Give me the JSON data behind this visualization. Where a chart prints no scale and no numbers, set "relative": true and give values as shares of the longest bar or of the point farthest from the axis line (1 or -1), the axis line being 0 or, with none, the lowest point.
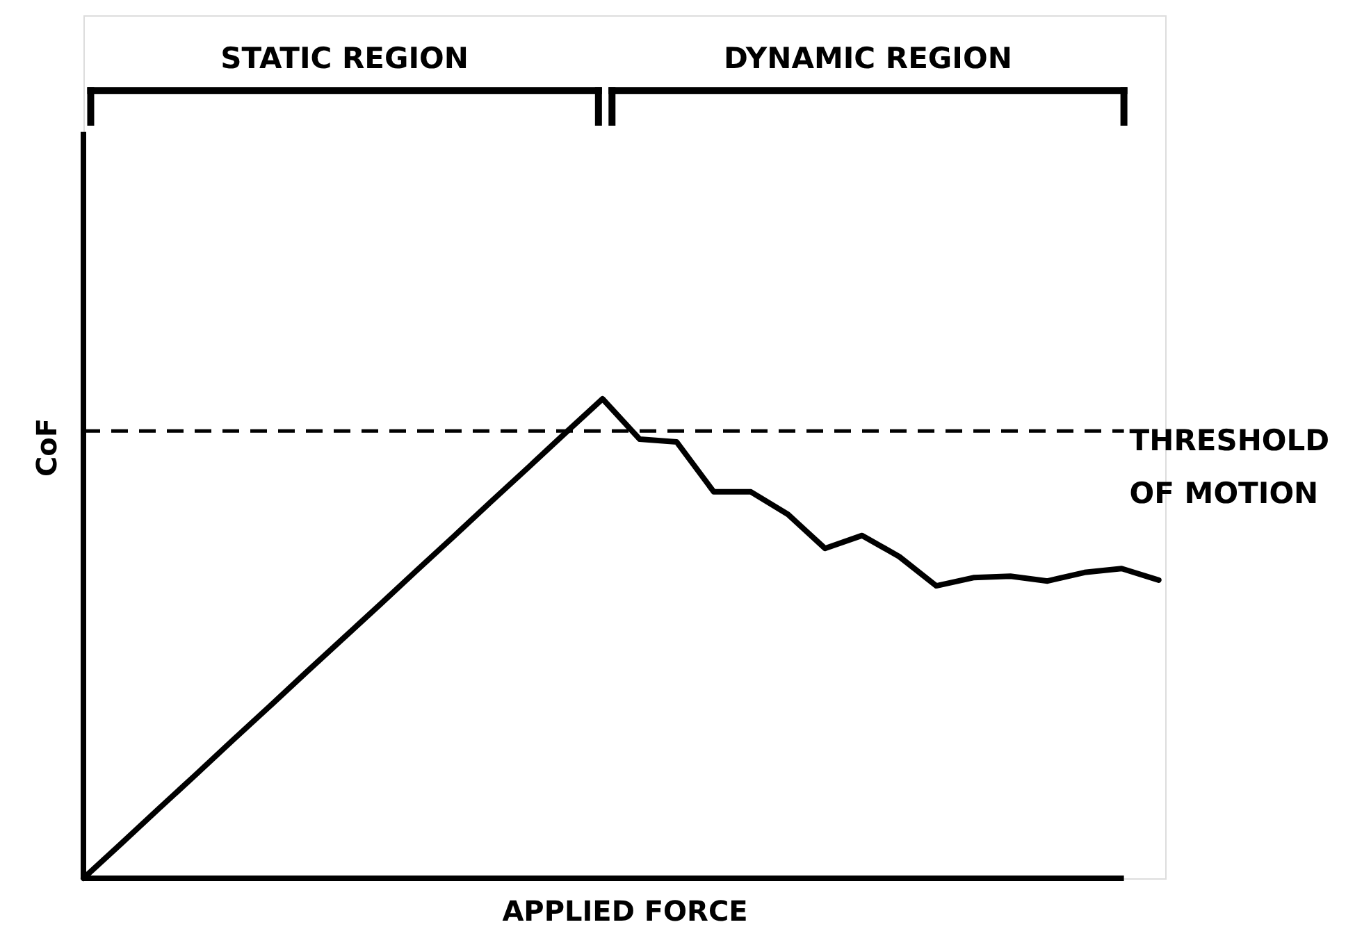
{
  "chart_data": {
    "type": "line",
    "relative": true,
    "xlabel": "APPLIED FORCE",
    "ylabel": "CoF",
    "tick_labels": false,
    "grid": false,
    "marker": "none",
    "line_style": "solid",
    "categories": [
      null,
      null,
      null,
      null,
      null,
      null,
      null,
      null,
      null,
      null,
      null,
      null,
      null,
      null,
      null,
      null,
      null,
      null,
      null,
      null,
      null,
      null,
      null,
      null,
      null,
      null,
      null,
      null,
      null,
      null
    ],
    "series": [
      {
        "color": "#000000",
        "values": [
          0,
          0.071,
          0.143,
          0.214,
          0.286,
          0.357,
          0.429,
          0.5,
          0.571,
          0.643,
          0.714,
          0.786,
          0.857,
          0.929,
          1,
          0.916,
          0.91,
          0.806,
          0.806,
          0.759,
          0.688,
          0.715,
          0.671,
          0.61,
          0.627,
          0.63,
          0.62,
          0.638,
          0.646,
          0.622
        ]
      }
    ],
    "ref_lines": [
      {
        "axis": "y",
        "value": 0.933,
        "label": "THRESHOLD OF MOTION",
        "color": "#000000",
        "line_style": "dashed"
      }
    ],
    "annotations": [
      "STATIC REGION",
      "DYNAMIC REGION"
    ]
  }
}
